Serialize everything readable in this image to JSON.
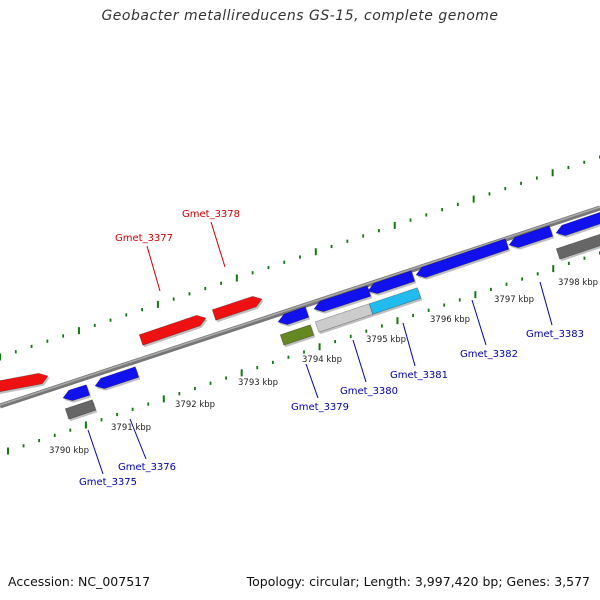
{
  "title": "Geobacter metallireducens GS-15, complete genome",
  "footer": {
    "accession": "Accession: NC_007517",
    "topology": "Topology: circular; Length: 3,997,420 bp; Genes: 3,577"
  },
  "colors": {
    "forward_gene": "#ee1111",
    "reverse_gene": "#1111ee",
    "forward_label": "#cc0000",
    "reverse_label": "#0000aa",
    "gray_feature": "#666666",
    "light_gray_feature": "#cccccc",
    "cyan_feature": "#22bbee",
    "green_feature": "#668822",
    "backbone": "#888888",
    "tick": "#117711"
  },
  "kbp_labels": [
    "3790 kbp",
    "3791 kbp",
    "3792 kbp",
    "3793 kbp",
    "3794 kbp",
    "3795 kbp",
    "3796 kbp",
    "3797 kbp",
    "3798 kbp"
  ],
  "genes": [
    {
      "name": "Gmet_3375",
      "strand": "reverse"
    },
    {
      "name": "Gmet_3376",
      "strand": "reverse"
    },
    {
      "name": "Gmet_3377",
      "strand": "forward"
    },
    {
      "name": "Gmet_3378",
      "strand": "forward"
    },
    {
      "name": "Gmet_3379",
      "strand": "reverse"
    },
    {
      "name": "Gmet_3380",
      "strand": "reverse"
    },
    {
      "name": "Gmet_3381",
      "strand": "reverse"
    },
    {
      "name": "Gmet_3382",
      "strand": "reverse"
    },
    {
      "name": "Gmet_3383",
      "strand": "reverse"
    }
  ]
}
